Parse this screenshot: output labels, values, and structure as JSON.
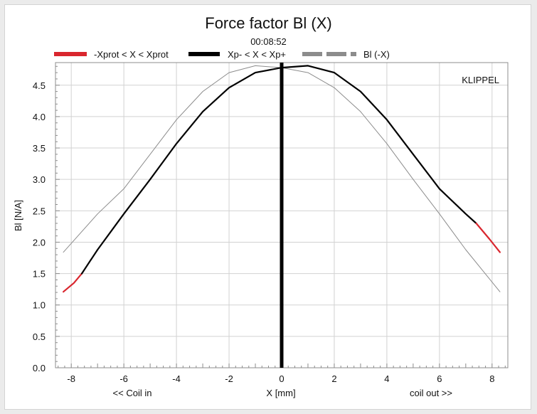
{
  "chart_data": {
    "type": "line",
    "title": "Force factor Bl (X)",
    "subtitle": "00:08:52",
    "xlabel": "X [mm]",
    "ylabel": "Bl [N/A]",
    "xlim": [
      -8.6,
      8.6
    ],
    "ylim": [
      0,
      4.86
    ],
    "x_ticks": [
      -8,
      -6,
      -4,
      -2,
      0,
      2,
      4,
      6,
      8
    ],
    "y_ticks": [
      0.0,
      0.5,
      1.0,
      1.5,
      2.0,
      2.5,
      3.0,
      3.5,
      4.0,
      4.5
    ],
    "y_tick_labels": [
      "0.0",
      "0.5",
      "1.0",
      "1.5",
      "2.0",
      "2.5",
      "3.0",
      "3.5",
      "4.0",
      "4.5"
    ],
    "x_annotation_left": "<< Coil in",
    "x_annotation_right": "coil out >>",
    "watermark": "KLIPPEL",
    "grid": true,
    "legend_position": "top",
    "series": [
      {
        "name": "-Xprot < X < Xprot",
        "color": "#d9262e",
        "x": [
          -8.3,
          -7.9,
          -7.6
        ],
        "y": [
          1.21,
          1.35,
          1.5
        ]
      },
      {
        "name": "Xp- < X < Xp+",
        "color": "#000000",
        "x": [
          -7.6,
          -7,
          -6,
          -5,
          -4,
          -3,
          -2,
          -1,
          0,
          1,
          2,
          3,
          4,
          5,
          6,
          7,
          7.4
        ],
        "y": [
          1.5,
          1.88,
          2.45,
          3.0,
          3.57,
          4.08,
          4.46,
          4.7,
          4.78,
          4.81,
          4.7,
          4.4,
          3.95,
          3.4,
          2.85,
          2.45,
          2.3
        ]
      },
      {
        "name": "-Xprot < X < Xprot",
        "color": "#d9262e",
        "x": [
          7.4,
          7.9,
          8.3
        ],
        "y": [
          2.3,
          2.05,
          1.84
        ]
      },
      {
        "name": "Bl (-X)",
        "color": "#8c8c8c",
        "x": [
          -8.3,
          -7,
          -6,
          -5,
          -4,
          -3,
          -2,
          -1,
          0,
          1,
          2,
          3,
          4,
          5,
          6,
          7,
          8.3
        ],
        "y": [
          1.84,
          2.45,
          2.85,
          3.4,
          3.95,
          4.4,
          4.7,
          4.81,
          4.78,
          4.7,
          4.46,
          4.08,
          3.57,
          3.0,
          2.45,
          1.88,
          1.21
        ]
      }
    ],
    "vertical_marker": {
      "x": 0,
      "color": "#000000"
    },
    "legend": [
      {
        "label": "-Xprot < X < Xprot",
        "color": "#d9262e",
        "style": "solid"
      },
      {
        "label": "Xp- < X < Xp+",
        "color": "#000000",
        "style": "solid"
      },
      {
        "label": "Bl (-X)",
        "color": "#8c8c8c",
        "style": "dashed"
      }
    ]
  }
}
